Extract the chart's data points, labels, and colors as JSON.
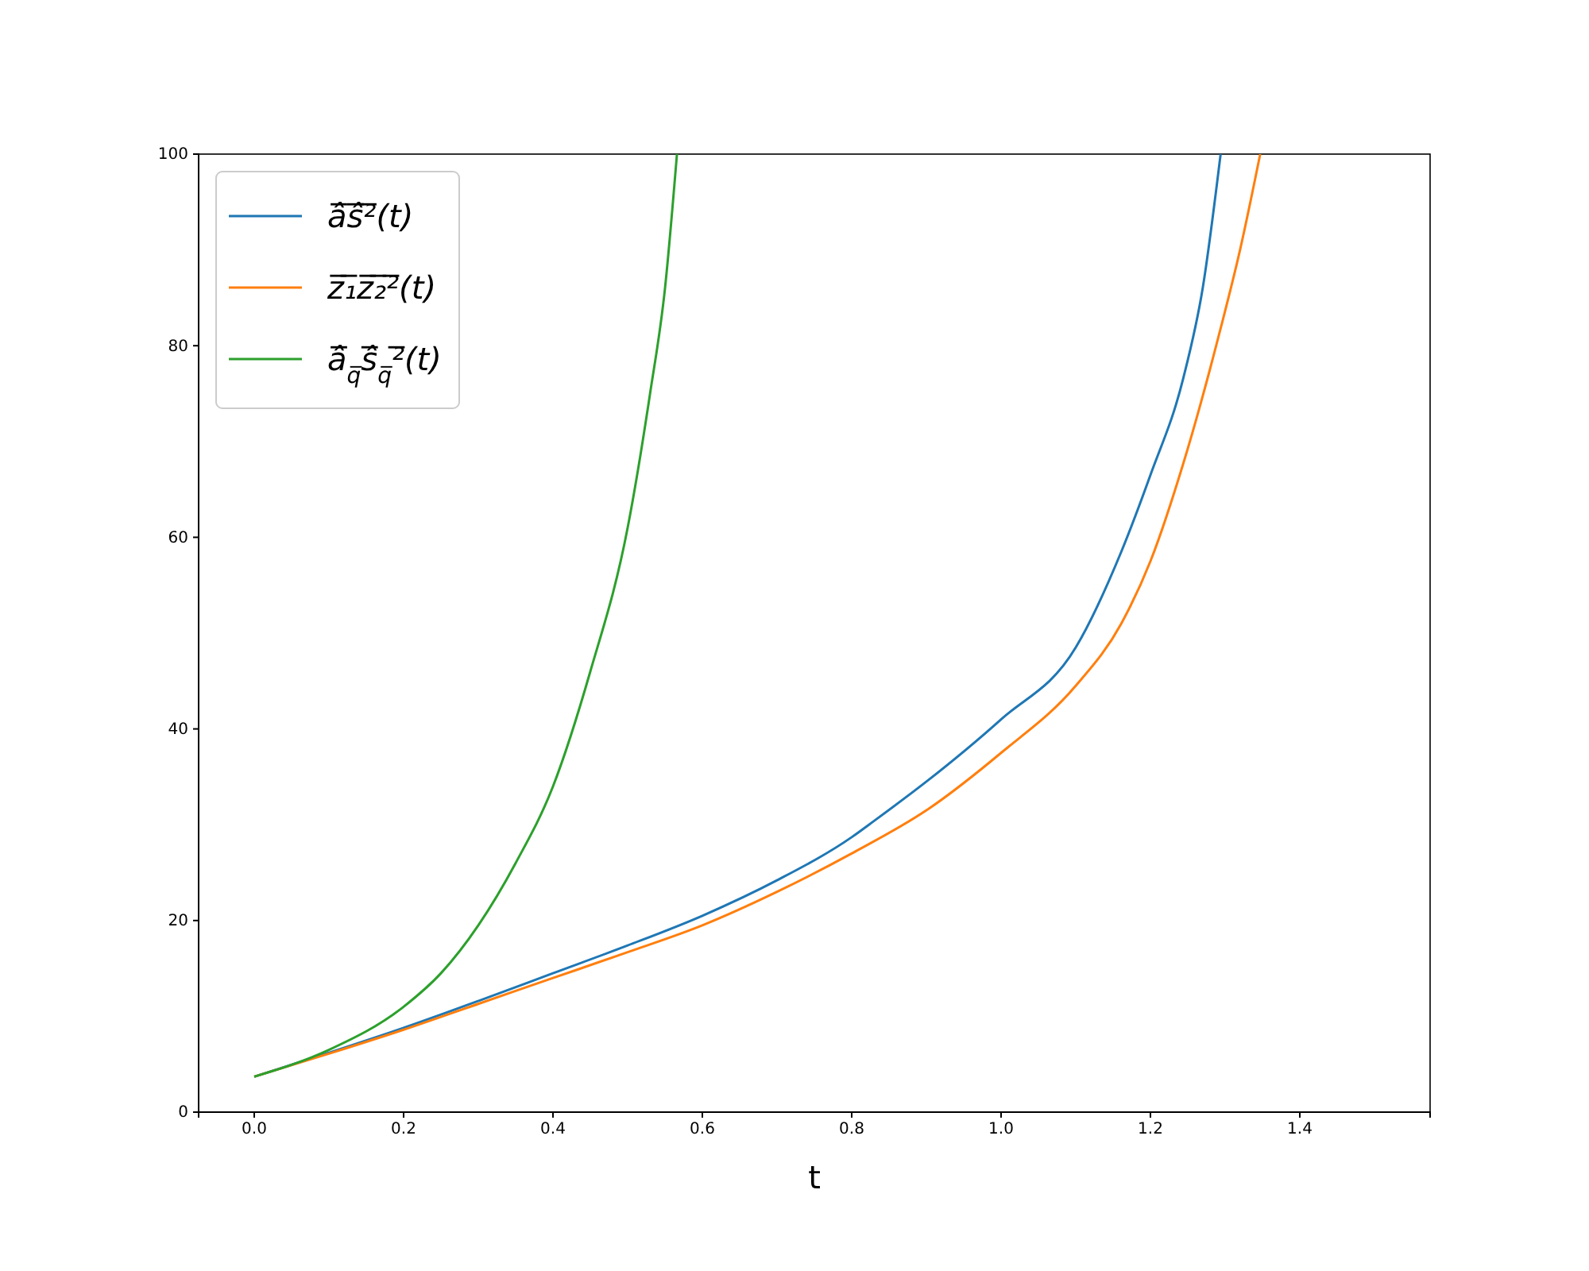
{
  "chart_data": {
    "type": "line",
    "xlabel": "t",
    "xlim": [
      -0.0745,
      1.5745
    ],
    "ylim": [
      0,
      100
    ],
    "xticks": [
      {
        "value": 0,
        "label": "0.0"
      },
      {
        "value": 0.2,
        "label": "0.2"
      },
      {
        "value": 0.4,
        "label": "0.4"
      },
      {
        "value": 0.6,
        "label": "0.6"
      },
      {
        "value": 0.8,
        "label": "0.8"
      },
      {
        "value": 1,
        "label": "1.0"
      },
      {
        "value": 1.2,
        "label": "1.2"
      },
      {
        "value": 1.4,
        "label": "1.4"
      }
    ],
    "yticks": [
      0,
      20,
      40,
      60,
      80,
      100
    ],
    "legend": "top left",
    "grid": false,
    "series": [
      {
        "name": "â̅ŝ̅²̅(t)",
        "color": "#1f77b4",
        "x": [
          0,
          0.1,
          0.2,
          0.3,
          0.4,
          0.5,
          0.6,
          0.7,
          0.8,
          0.83,
          0.9,
          1.0,
          1.1,
          1.161,
          1.2,
          1.244,
          1.27,
          1.294
        ],
        "values": [
          3.7,
          6.2,
          8.8,
          11.6,
          14.5,
          17.4,
          20.5,
          24.2,
          28.7,
          30.4,
          34.5,
          41,
          48.5,
          58.5,
          66.5,
          76.6,
          86,
          100
        ]
      },
      {
        "name": "z̅₁̅z̅₂̅²̅(t)",
        "color": "#ff7f0e",
        "x": [
          0,
          0.1,
          0.2,
          0.3,
          0.4,
          0.5,
          0.6,
          0.7,
          0.8,
          0.9,
          1.0,
          1.1,
          1.161,
          1.2,
          1.244,
          1.294,
          1.32,
          1.347
        ],
        "values": [
          3.7,
          6.1,
          8.6,
          11.3,
          14,
          16.7,
          19.5,
          23,
          27,
          31.5,
          37.5,
          44.5,
          51,
          57.5,
          67.7,
          81.8,
          90,
          100
        ]
      },
      {
        "name": "â̅$_{q̅}$ŝ̅$_{q̅}$²̅(t)",
        "color": "#2ca02c",
        "x": [
          0,
          0.1,
          0.2,
          0.25,
          0.3,
          0.35,
          0.4,
          0.45,
          0.5,
          0.53,
          0.55,
          0.566
        ],
        "values": [
          3.7,
          6.5,
          11,
          14.5,
          19.5,
          26,
          34,
          46,
          61,
          75,
          86,
          100
        ]
      }
    ]
  }
}
